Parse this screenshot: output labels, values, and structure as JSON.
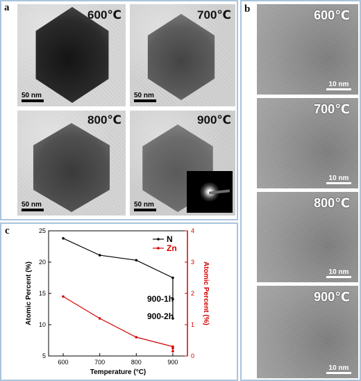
{
  "panel_a": {
    "letter": "a",
    "images": [
      {
        "temp": "600℃",
        "scale": "50 nm"
      },
      {
        "temp": "700℃",
        "scale": "50 nm"
      },
      {
        "temp": "800℃",
        "scale": "50 nm"
      },
      {
        "temp": "900℃",
        "scale": "50 nm"
      }
    ]
  },
  "panel_b": {
    "letter": "b",
    "images": [
      {
        "temp": "600℃",
        "scale": "10 nm"
      },
      {
        "temp": "700℃",
        "scale": "10 nm"
      },
      {
        "temp": "800℃",
        "scale": "10 nm"
      },
      {
        "temp": "900℃",
        "scale": "10 nm"
      }
    ]
  },
  "panel_c": {
    "letter": "c",
    "colors": {
      "N": "#000000",
      "Zn": "#d40000",
      "frame": "#a9c4dc"
    }
  },
  "chart_data": {
    "type": "line",
    "xlabel": "Temperature (°C)",
    "ylabel_left": "Atomic Percent (%)",
    "ylabel_right": "Atomic Percent (%)",
    "x_ticks": [
      600,
      700,
      800,
      900
    ],
    "y_left_ticks": [
      5,
      10,
      15,
      20,
      25
    ],
    "y_right_ticks": [
      0,
      1,
      2,
      3,
      4
    ],
    "y_left_lim": [
      5,
      25
    ],
    "y_right_lim": [
      0,
      4
    ],
    "x_lim": [
      560,
      940
    ],
    "legend_position": "top-right",
    "series": [
      {
        "name": "N",
        "axis": "left",
        "color": "#000000",
        "x": [
          600,
          700,
          800,
          900,
          900,
          900
        ],
        "y": [
          23.8,
          21.1,
          20.3,
          17.5,
          14.1,
          11.0
        ]
      },
      {
        "name": "Zn",
        "axis": "right",
        "color": "#d40000",
        "x": [
          600,
          700,
          800,
          900,
          900,
          900
        ],
        "y": [
          1.9,
          1.2,
          0.6,
          0.3,
          0.25,
          0.15
        ]
      }
    ],
    "annotations": [
      "900-1h",
      "900-2h"
    ]
  }
}
